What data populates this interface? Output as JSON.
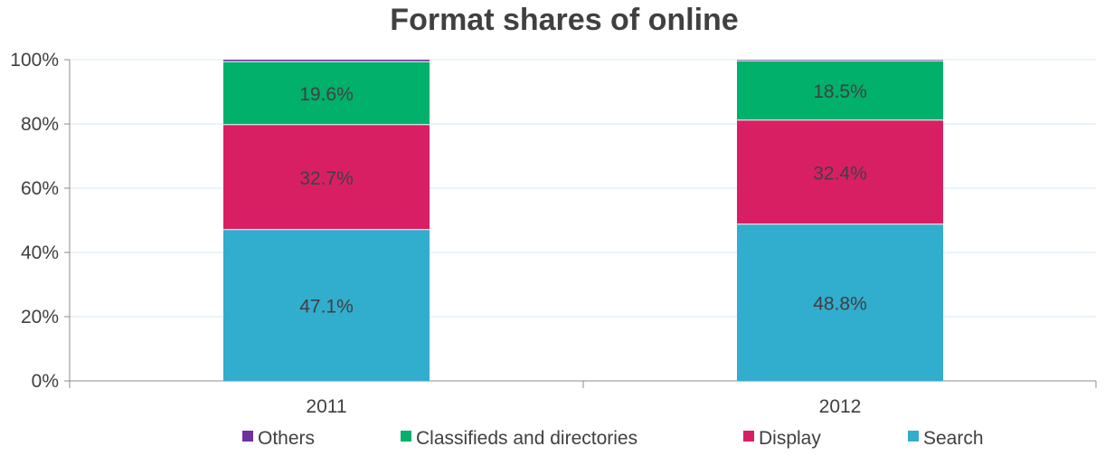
{
  "chart_data": {
    "type": "bar",
    "stacked": true,
    "title": "Format shares of online",
    "xlabel": "",
    "ylabel": "",
    "ylim": [
      0,
      100
    ],
    "y_ticks": [
      "0%",
      "20%",
      "40%",
      "60%",
      "80%",
      "100%"
    ],
    "y_tick_values": [
      0,
      20,
      40,
      60,
      80,
      100
    ],
    "grid": true,
    "legend_position": "bottom",
    "categories": [
      "2011",
      "2012"
    ],
    "series": [
      {
        "name": "Search",
        "color": "#31ADCE",
        "values": [
          47.1,
          48.8
        ],
        "labels": [
          "47.1%",
          "48.8%"
        ]
      },
      {
        "name": "Display",
        "color": "#D91F64",
        "values": [
          32.7,
          32.4
        ],
        "labels": [
          "32.7%",
          "32.4%"
        ]
      },
      {
        "name": "Classifieds and directories",
        "color": "#00B06B",
        "values": [
          19.6,
          18.5
        ],
        "labels": [
          "19.6%",
          "18.5%"
        ]
      },
      {
        "name": "Others",
        "color": "#7030A0",
        "values": [
          0.6,
          0.3
        ],
        "labels": [
          "",
          ""
        ]
      }
    ],
    "legend_order": [
      "Others",
      "Classifieds and directories",
      "Display",
      "Search"
    ]
  }
}
